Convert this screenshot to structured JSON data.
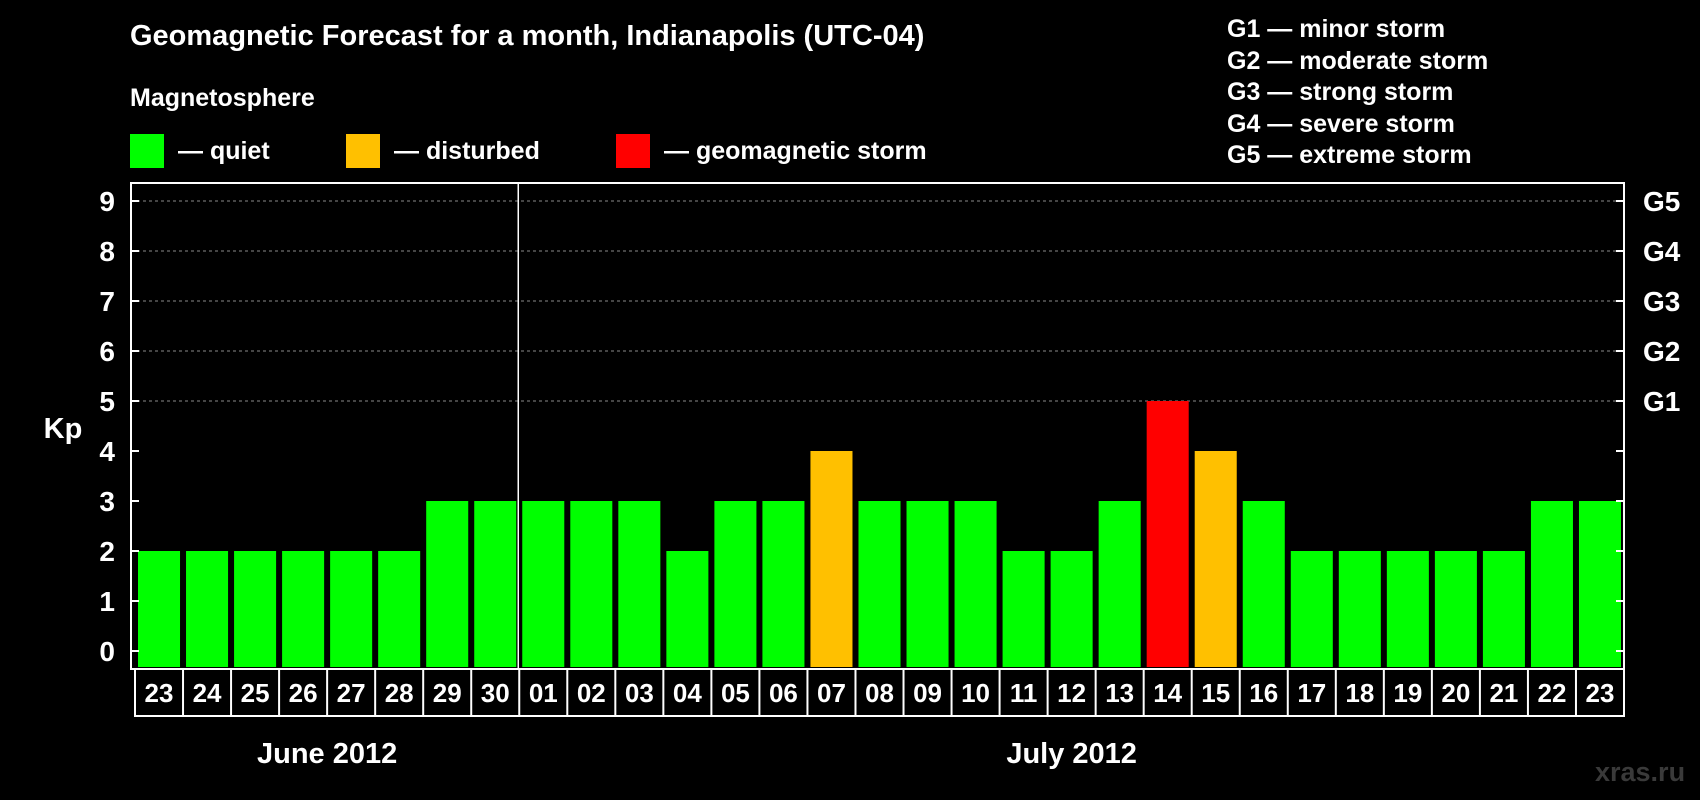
{
  "chart_data": {
    "type": "bar",
    "title": "Geomagnetic Forecast for a month, Indianapolis (UTC-04)",
    "subtitle": "Magnetosphere",
    "ylabel": "Kp",
    "ylim": [
      0,
      9
    ],
    "yticks": [
      "0",
      "1",
      "2",
      "3",
      "4",
      "5",
      "6",
      "7",
      "8",
      "9"
    ],
    "right_ticks": [
      {
        "kp": 5,
        "label": "G1"
      },
      {
        "kp": 6,
        "label": "G2"
      },
      {
        "kp": 7,
        "label": "G3"
      },
      {
        "kp": 8,
        "label": "G4"
      },
      {
        "kp": 9,
        "label": "G5"
      }
    ],
    "categories": [
      "23",
      "24",
      "25",
      "26",
      "27",
      "28",
      "29",
      "30",
      "01",
      "02",
      "03",
      "04",
      "05",
      "06",
      "07",
      "08",
      "09",
      "10",
      "11",
      "12",
      "13",
      "14",
      "15",
      "16",
      "17",
      "18",
      "19",
      "20",
      "21",
      "22",
      "23"
    ],
    "values": [
      2,
      2,
      2,
      2,
      2,
      2,
      3,
      3,
      3,
      3,
      3,
      2,
      3,
      3,
      4,
      3,
      3,
      3,
      2,
      2,
      3,
      5,
      4,
      3,
      2,
      2,
      2,
      2,
      2,
      3,
      3
    ],
    "levels": [
      "quiet",
      "quiet",
      "quiet",
      "quiet",
      "quiet",
      "quiet",
      "quiet",
      "quiet",
      "quiet",
      "quiet",
      "quiet",
      "quiet",
      "quiet",
      "quiet",
      "disturbed",
      "quiet",
      "quiet",
      "quiet",
      "quiet",
      "quiet",
      "quiet",
      "storm",
      "disturbed",
      "quiet",
      "quiet",
      "quiet",
      "quiet",
      "quiet",
      "quiet",
      "quiet",
      "quiet"
    ],
    "months": [
      {
        "label": "June 2012",
        "first": 0,
        "last": 7
      },
      {
        "label": "July 2012",
        "first": 8,
        "last": 30
      }
    ],
    "month_divider_after_index": 7,
    "grid": true,
    "legend": [
      {
        "key": "quiet",
        "label": "— quiet",
        "color": "#00ff00"
      },
      {
        "key": "disturbed",
        "label": "— disturbed",
        "color": "#ffc000"
      },
      {
        "key": "storm",
        "label": "— geomagnetic storm",
        "color": "#ff0000"
      }
    ],
    "storm_scale": [
      "G1 — minor storm",
      "G2 — moderate storm",
      "G3 — strong storm",
      "G4 — severe storm",
      "G5 — extreme storm"
    ]
  },
  "colors": {
    "quiet": "#00ff00",
    "disturbed": "#ffc000",
    "storm": "#ff0000"
  },
  "watermark": "xras.ru"
}
